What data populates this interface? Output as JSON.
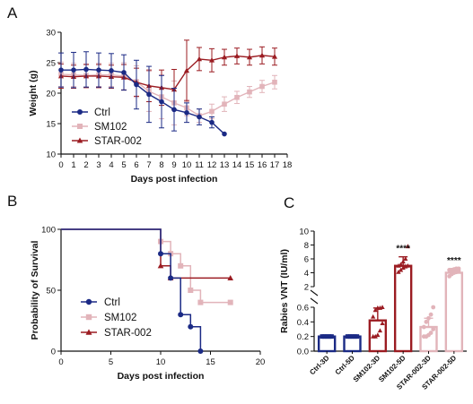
{
  "colors": {
    "ctrl": "#1b2a85",
    "sm102": "#e2b4ba",
    "star": "#9b1c22",
    "axis": "#111111"
  },
  "panel_labels": [
    "A",
    "B",
    "C"
  ],
  "chart_data": [
    {
      "panel": "A",
      "type": "line",
      "title": "",
      "xlabel": "Days post  infection",
      "ylabel": "Weight (g)",
      "xlim": [
        0,
        18
      ],
      "ylim": [
        10,
        30
      ],
      "xticks": [
        "0",
        "1",
        "2",
        "3",
        "4",
        "5",
        "6",
        "7",
        "8",
        "9",
        "10",
        "11",
        "12",
        "13",
        "14",
        "15",
        "16",
        "17",
        "18"
      ],
      "yticks": [
        "10",
        "15",
        "20",
        "25",
        "30"
      ],
      "legend_position": "bottom-left",
      "series": [
        {
          "name": "Ctrl",
          "key": "ctrl",
          "marker": "circle",
          "x": [
            0,
            1,
            2,
            3,
            4,
            5,
            6,
            7,
            8,
            9,
            10,
            11,
            12,
            13
          ],
          "y": [
            23.8,
            23.8,
            23.9,
            23.8,
            23.7,
            23.4,
            21.4,
            19.8,
            18.6,
            17.3,
            16.8,
            16.1,
            15.2,
            13.3
          ],
          "err": [
            2.8,
            2.9,
            2.9,
            2.8,
            2.8,
            2.9,
            4.0,
            4.6,
            4.3,
            3.5,
            1.6,
            1.3,
            0.9,
            0
          ]
        },
        {
          "name": "SM102",
          "key": "sm102",
          "marker": "square",
          "x": [
            0,
            1,
            2,
            3,
            4,
            5,
            6,
            7,
            8,
            9,
            10,
            11,
            12,
            13,
            14,
            15,
            16,
            17
          ],
          "y": [
            23.1,
            23.0,
            22.9,
            23.0,
            23.0,
            22.8,
            21.9,
            20.3,
            19.4,
            18.4,
            17.6,
            16.3,
            17.0,
            18.2,
            19.3,
            20.2,
            21.1,
            21.8
          ],
          "err": [
            2.0,
            1.9,
            1.9,
            1.9,
            1.9,
            2.2,
            2.6,
            3.3,
            3.6,
            3.6,
            1.3,
            1.1,
            1.2,
            1.2,
            1.0,
            0.9,
            1.0,
            1.1
          ]
        },
        {
          "name": "STAR-002",
          "key": "star",
          "marker": "triangle",
          "x": [
            0,
            1,
            2,
            3,
            4,
            5,
            6,
            7,
            8,
            9,
            10,
            11,
            12,
            13,
            14,
            15,
            16,
            17
          ],
          "y": [
            22.8,
            22.7,
            22.8,
            22.8,
            22.7,
            22.6,
            21.8,
            21.2,
            20.9,
            20.6,
            23.7,
            25.6,
            25.4,
            25.9,
            26.1,
            25.9,
            26.2,
            26.0
          ],
          "err": [
            2.0,
            1.9,
            1.9,
            1.9,
            1.9,
            2.1,
            2.3,
            2.6,
            2.9,
            3.3,
            5.0,
            1.9,
            1.9,
            1.3,
            1.3,
            1.3,
            1.4,
            1.4
          ]
        }
      ]
    },
    {
      "panel": "B",
      "type": "line",
      "title": "",
      "xlabel": "Days post  infection",
      "ylabel": "Probability of Survival",
      "xlim": [
        0,
        20
      ],
      "ylim": [
        0,
        100
      ],
      "xticks": [
        "0",
        "5",
        "10",
        "15",
        "20"
      ],
      "yticks": [
        "0",
        "50",
        "100"
      ],
      "legend_position": "bottom-left",
      "series": [
        {
          "name": "Ctrl",
          "key": "ctrl",
          "marker": "circle",
          "steps": [
            [
              0,
              100
            ],
            [
              10,
              80
            ],
            [
              11,
              60
            ],
            [
              12,
              30
            ],
            [
              13,
              20
            ],
            [
              14,
              0
            ]
          ]
        },
        {
          "name": "SM102",
          "key": "sm102",
          "marker": "square",
          "steps": [
            [
              0,
              100
            ],
            [
              10,
              90
            ],
            [
              11,
              80
            ],
            [
              12,
              70
            ],
            [
              13,
              50
            ],
            [
              14,
              40
            ],
            [
              17,
              40
            ]
          ]
        },
        {
          "name": "STAR-002",
          "key": "star",
          "marker": "triangle",
          "steps": [
            [
              0,
              100
            ],
            [
              10,
              70
            ],
            [
              11,
              60
            ],
            [
              17,
              60
            ]
          ]
        }
      ]
    },
    {
      "panel": "C",
      "type": "bar",
      "title": "",
      "ylabel": "Rabies VNT (IU/ml)",
      "yaxis_break": [
        0.6,
        2
      ],
      "lower_yticks": [
        "0.0",
        "0.2",
        "0.4",
        "0.6"
      ],
      "upper_yticks": [
        "2",
        "4",
        "6",
        "8",
        "10"
      ],
      "categories": [
        "Ctrl-3D",
        "Ctrl-5D",
        "SM102-3D",
        "SM102-5D",
        "STAR-002-3D",
        "STAR-002-5D"
      ],
      "values": [
        0.2,
        0.2,
        0.42,
        5.0,
        0.33,
        4.0
      ],
      "errors": [
        0,
        0,
        0.17,
        1.3,
        0.12,
        0.6
      ],
      "bar_colors": [
        "ctrl",
        "ctrl",
        "star",
        "star",
        "sm102",
        "sm102"
      ],
      "points": [
        [
          0.2,
          0.2,
          0.2,
          0.2,
          0.2,
          0.2,
          0.2,
          0.2,
          0.2,
          0.2
        ],
        [
          0.2,
          0.2,
          0.2,
          0.2,
          0.2,
          0.2,
          0.2,
          0.2,
          0.2,
          0.2
        ],
        [
          0.2,
          0.2,
          0.22,
          0.28,
          0.38,
          0.47,
          0.56,
          0.59,
          0.59,
          0.6
        ],
        [
          4.1,
          4.4,
          4.7,
          4.9,
          5.0,
          5.0,
          5.2,
          5.6,
          6.0,
          7.8
        ],
        [
          0.2,
          0.2,
          0.22,
          0.25,
          0.3,
          0.33,
          0.4,
          0.45,
          0.5,
          0.6
        ],
        [
          3.5,
          3.8,
          4.0,
          4.1,
          4.3,
          4.4,
          4.4,
          4.5,
          4.6,
          4.6
        ]
      ],
      "significance": [
        "",
        "",
        "",
        "****",
        "",
        "****"
      ]
    }
  ]
}
